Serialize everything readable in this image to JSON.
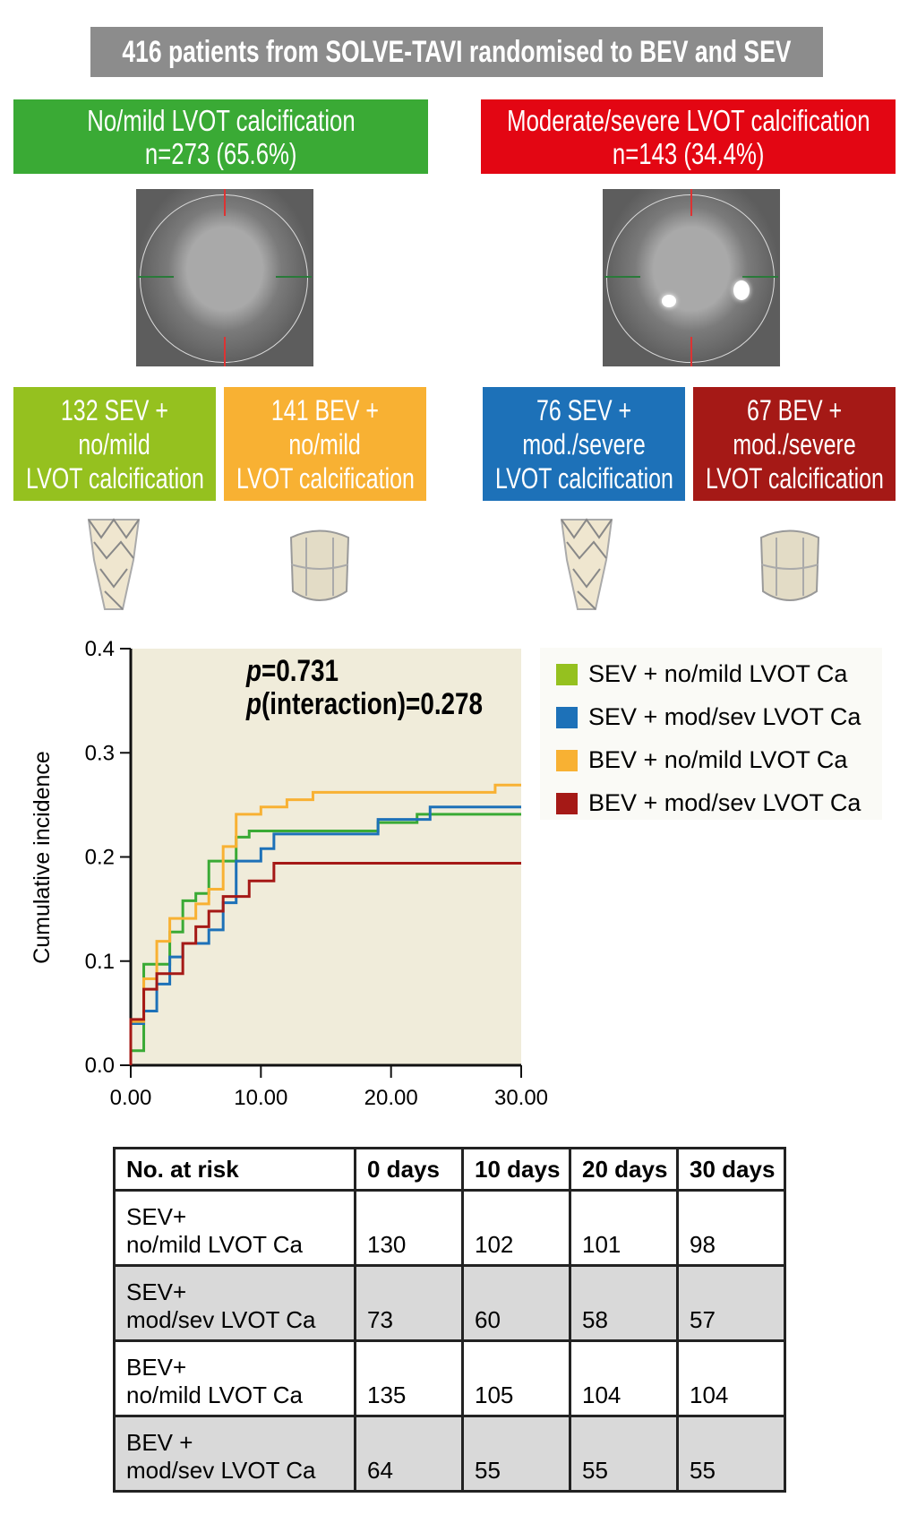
{
  "header": {
    "title": "416 patients from SOLVE-TAVI randomised to BEV and SEV"
  },
  "groups": [
    {
      "line1": "No/mild LVOT calcification",
      "line2": "n=273 (65.6%)",
      "color": "#3aaa35"
    },
    {
      "line1": "Moderate/severe LVOT calcification",
      "line2": "n=143 (34.4%)",
      "color": "#e30613"
    }
  ],
  "subgroups": [
    {
      "line1": "132 SEV +",
      "line2": "no/mild",
      "line3": "LVOT calcification",
      "color": "#95c11f"
    },
    {
      "line1": "141 BEV +",
      "line2": "no/mild",
      "line3": "LVOT calcification",
      "color": "#f8b133"
    },
    {
      "line1": "76 SEV +",
      "line2": "mod./severe",
      "line3": "LVOT calcification",
      "color": "#1d71b8"
    },
    {
      "line1": "67 BEV +",
      "line2": "mod./severe",
      "line3": "LVOT calcification",
      "color": "#a51916"
    }
  ],
  "chart_data": {
    "type": "line",
    "step": true,
    "ylabel": "Cumulative incidence",
    "xlabel": "",
    "xlim": [
      0,
      30
    ],
    "ylim": [
      0,
      0.4
    ],
    "xticks": [
      "0.00",
      "10.00",
      "20.00",
      "30.00"
    ],
    "yticks": [
      "0.0",
      "0.1",
      "0.2",
      "0.3",
      "0.4"
    ],
    "annotation": {
      "p": "p",
      "p_value": "=0.731",
      "p2": "p",
      "interaction": "(interaction)=0.278"
    },
    "legend_position": "right",
    "series": [
      {
        "name": "SEV + no/mild LVOT Ca",
        "color": "#3aaa35",
        "legend_color": "#95c11f",
        "points": [
          [
            0,
            0.014
          ],
          [
            1,
            0.097
          ],
          [
            3,
            0.128
          ],
          [
            4,
            0.158
          ],
          [
            5,
            0.165
          ],
          [
            6,
            0.196
          ],
          [
            8.1,
            0.219
          ],
          [
            9.1,
            0.225
          ],
          [
            19,
            0.233
          ],
          [
            22,
            0.241
          ],
          [
            30,
            0.241
          ]
        ]
      },
      {
        "name": "SEV + mod/sev LVOT Ca",
        "color": "#1d71b8",
        "legend_color": "#1d71b8",
        "points": [
          [
            0,
            0.04
          ],
          [
            1,
            0.052
          ],
          [
            2,
            0.078
          ],
          [
            3,
            0.104
          ],
          [
            4,
            0.117
          ],
          [
            6,
            0.13
          ],
          [
            7.1,
            0.156
          ],
          [
            8.1,
            0.196
          ],
          [
            10,
            0.208
          ],
          [
            11,
            0.222
          ],
          [
            19,
            0.236
          ],
          [
            23,
            0.248
          ],
          [
            30,
            0.248
          ]
        ]
      },
      {
        "name": "BEV + no/mild LVOT Ca",
        "color": "#f8b133",
        "legend_color": "#f8b133",
        "points": [
          [
            0,
            0.042
          ],
          [
            1,
            0.083
          ],
          [
            2,
            0.119
          ],
          [
            3,
            0.141
          ],
          [
            5,
            0.155
          ],
          [
            6,
            0.169
          ],
          [
            7.1,
            0.21
          ],
          [
            8.1,
            0.241
          ],
          [
            10,
            0.248
          ],
          [
            12,
            0.255
          ],
          [
            14,
            0.262
          ],
          [
            28,
            0.269
          ],
          [
            30,
            0.269
          ]
        ]
      },
      {
        "name": "BEV + mod/sev LVOT Ca",
        "color": "#a51916",
        "legend_color": "#a51916",
        "points": [
          [
            0,
            0.044
          ],
          [
            1,
            0.073
          ],
          [
            2,
            0.088
          ],
          [
            4,
            0.117
          ],
          [
            5,
            0.133
          ],
          [
            6,
            0.148
          ],
          [
            7.1,
            0.162
          ],
          [
            9.1,
            0.177
          ],
          [
            11,
            0.194
          ],
          [
            30,
            0.194
          ]
        ]
      }
    ]
  },
  "risk_table": {
    "headers": [
      "No. at risk",
      "0 days",
      "10 days",
      "20 days",
      "30 days"
    ],
    "rows": [
      {
        "l1": "SEV+",
        "l2": "no/mild LVOT Ca",
        "v": [
          "130",
          "102",
          "101",
          "98"
        ]
      },
      {
        "l1": "SEV+",
        "l2": "mod/sev LVOT Ca",
        "v": [
          "73",
          "60",
          "58",
          "57"
        ]
      },
      {
        "l1": "BEV+",
        "l2": "no/mild LVOT Ca",
        "v": [
          "135",
          "105",
          "104",
          "104"
        ]
      },
      {
        "l1": "BEV +",
        "l2": "mod/sev LVOT Ca",
        "v": [
          "64",
          "55",
          "55",
          "55"
        ]
      }
    ]
  }
}
